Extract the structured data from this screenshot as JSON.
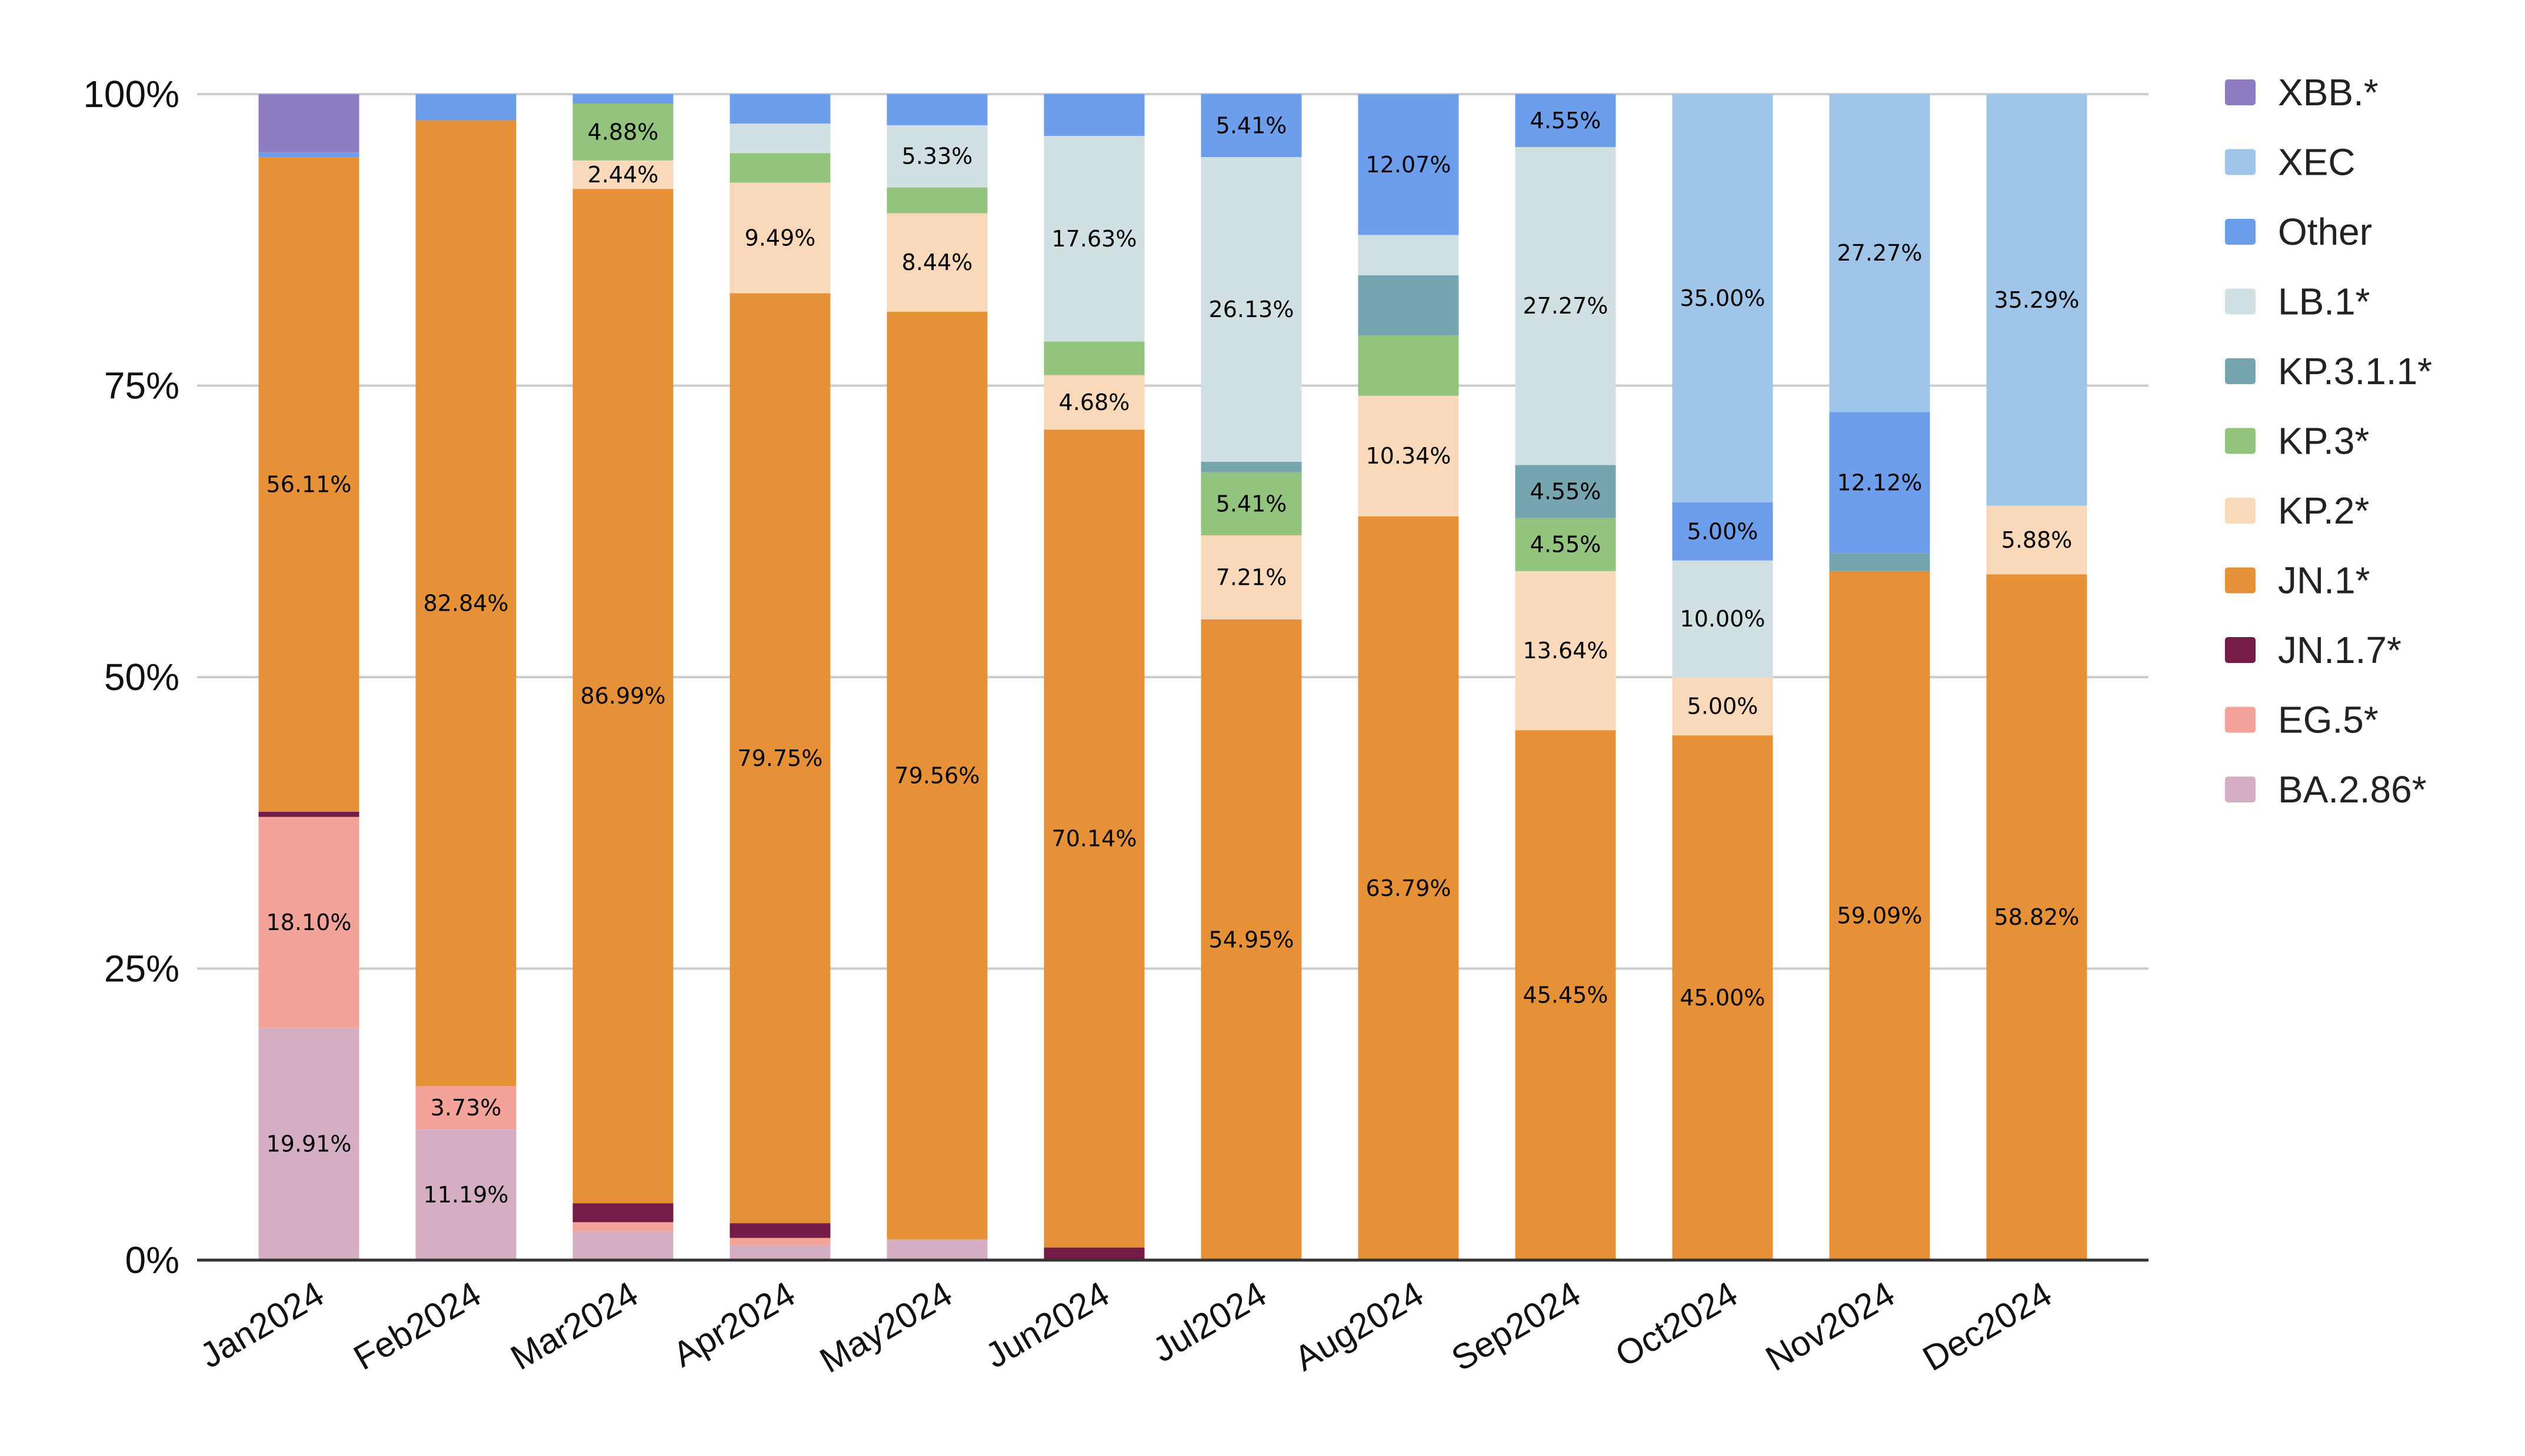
{
  "chart_data": {
    "type": "bar",
    "stacked": true,
    "normalized": true,
    "title": "",
    "xlabel": "",
    "ylabel": "",
    "ylim": [
      0,
      100
    ],
    "y_ticks": [
      "0%",
      "25%",
      "50%",
      "75%",
      "100%"
    ],
    "y_tick_values": [
      0,
      25,
      50,
      75,
      100
    ],
    "grid": true,
    "legend_position": "right",
    "categories": [
      "Jan2024",
      "Feb2024",
      "Mar2024",
      "Apr2024",
      "May2024",
      "Jun2024",
      "Jul2024",
      "Aug2024",
      "Sep2024",
      "Oct2024",
      "Nov2024",
      "Dec2024"
    ],
    "series": [
      {
        "name": "BA.2.86*",
        "color": "#d5aec3",
        "values": [
          19.91,
          11.19,
          2.44,
          1.27,
          1.78,
          0,
          0,
          0,
          0,
          0,
          0,
          0
        ],
        "labels": [
          "19.91%",
          "11.19%",
          "",
          "",
          "",
          "",
          "",
          "",
          "",
          "",
          "",
          ""
        ]
      },
      {
        "name": "EG.5*",
        "color": "#f4a39b",
        "values": [
          18.1,
          3.73,
          0.81,
          0.63,
          0,
          0,
          0,
          0,
          0,
          0,
          0,
          0
        ],
        "labels": [
          "18.10%",
          "3.73%",
          "",
          "",
          "",
          "",
          "",
          "",
          "",
          "",
          "",
          ""
        ]
      },
      {
        "name": "JN.1.7*",
        "color": "#741b47",
        "values": [
          0.45,
          0,
          1.63,
          1.27,
          0,
          1.08,
          0,
          0,
          0,
          0,
          0,
          0
        ],
        "labels": [
          "",
          "",
          "",
          "",
          "",
          "",
          "",
          "",
          "",
          "",
          "",
          ""
        ]
      },
      {
        "name": "JN.1*",
        "color": "#e69138",
        "values": [
          56.11,
          82.84,
          86.99,
          79.75,
          79.56,
          70.14,
          54.95,
          63.79,
          45.45,
          45.0,
          59.09,
          58.82
        ],
        "labels": [
          "56.11%",
          "82.84%",
          "86.99%",
          "79.75%",
          "79.56%",
          "70.14%",
          "54.95%",
          "63.79%",
          "45.45%",
          "45.00%",
          "59.09%",
          "58.82%"
        ]
      },
      {
        "name": "KP.2*",
        "color": "#f9d9b9",
        "values": [
          0,
          0,
          2.44,
          9.49,
          8.44,
          4.68,
          7.21,
          10.34,
          13.64,
          5.0,
          0,
          5.88
        ],
        "labels": [
          "",
          "",
          "2.44%",
          "9.49%",
          "8.44%",
          "4.68%",
          "7.21%",
          "10.34%",
          "13.64%",
          "5.00%",
          "",
          "5.88%"
        ]
      },
      {
        "name": "KP.3*",
        "color": "#93c47d",
        "values": [
          0,
          0,
          4.88,
          2.53,
          2.22,
          2.88,
          5.41,
          5.17,
          4.55,
          0,
          0,
          0
        ],
        "labels": [
          "",
          "",
          "4.88%",
          "",
          "",
          "",
          "5.41%",
          "",
          "4.55%",
          "",
          "",
          ""
        ]
      },
      {
        "name": "KP.3.1.1*",
        "color": "#76a5af",
        "values": [
          0,
          0,
          0,
          0,
          0,
          0,
          0.9,
          5.17,
          4.55,
          0,
          1.52,
          0
        ],
        "labels": [
          "",
          "",
          "",
          "",
          "",
          "",
          "",
          "",
          "4.55%",
          "",
          "",
          ""
        ]
      },
      {
        "name": "LB.1*",
        "color": "#d0e0e3",
        "values": [
          0,
          0,
          0,
          2.53,
          5.33,
          17.63,
          26.13,
          3.45,
          27.27,
          10.0,
          0,
          0
        ],
        "labels": [
          "",
          "",
          "",
          "",
          "5.33%",
          "17.63%",
          "26.13%",
          "",
          "27.27%",
          "10.00%",
          "",
          ""
        ]
      },
      {
        "name": "Other",
        "color": "#6d9eeb",
        "values": [
          0.45,
          2.24,
          0.81,
          2.53,
          2.67,
          3.6,
          5.41,
          12.07,
          4.55,
          5.0,
          12.12,
          0
        ],
        "labels": [
          "",
          "",
          "",
          "",
          "",
          "",
          "5.41%",
          "12.07%",
          "4.55%",
          "5.00%",
          "12.12%",
          ""
        ]
      },
      {
        "name": "XEC",
        "color": "#9fc5e8",
        "values": [
          0,
          0,
          0,
          0,
          0,
          0,
          0,
          0,
          0,
          35.0,
          27.27,
          35.29
        ],
        "labels": [
          "",
          "",
          "",
          "",
          "",
          "",
          "",
          "",
          "",
          "35.00%",
          "27.27%",
          "35.29%"
        ]
      },
      {
        "name": "XBB.*",
        "color": "#8e7cc3",
        "values": [
          4.98,
          0,
          0,
          0,
          0,
          0,
          0,
          0,
          0,
          0,
          0,
          0
        ],
        "labels": [
          "",
          "",
          "",
          "",
          "",
          "",
          "",
          "",
          "",
          "",
          "",
          ""
        ]
      }
    ],
    "legend": [
      "XBB.*",
      "XEC",
      "Other",
      "LB.1*",
      "KP.3.1.1*",
      "KP.3*",
      "KP.2*",
      "JN.1*",
      "JN.1.7*",
      "EG.5*",
      "BA.2.86*"
    ]
  }
}
